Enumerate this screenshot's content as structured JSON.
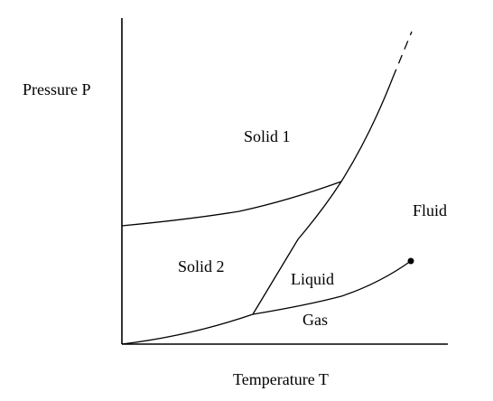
{
  "axes": {
    "y_label": "Pressure P",
    "x_label": "Temperature T"
  },
  "regions": {
    "solid1": "Solid 1",
    "solid2": "Solid 2",
    "fluid": "Fluid",
    "liquid": "Liquid",
    "gas": "Gas"
  },
  "colors": {
    "line": "#000000",
    "background": "#ffffff"
  }
}
